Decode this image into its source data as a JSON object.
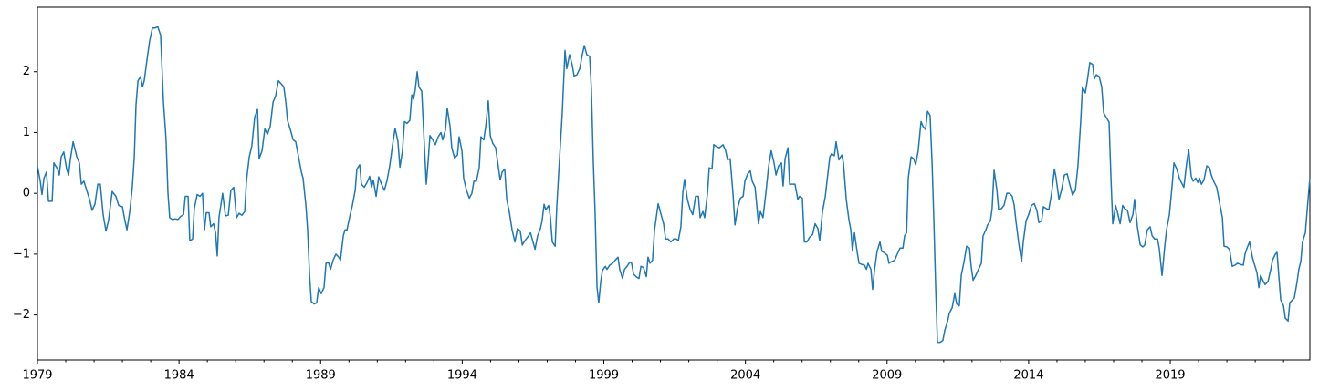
{
  "chart_data": {
    "type": "line",
    "x": [
      1979.0,
      1979.1,
      1979.16,
      1979.23,
      1979.32,
      1979.39,
      1979.52,
      1979.58,
      1979.71,
      1979.77,
      1979.84,
      1979.93,
      1980.03,
      1980.1,
      1980.16,
      1980.26,
      1980.39,
      1980.48,
      1980.55,
      1980.64,
      1980.74,
      1980.84,
      1980.93,
      1981.03,
      1981.13,
      1981.22,
      1981.32,
      1981.42,
      1981.51,
      1981.64,
      1981.77,
      1981.87,
      1982.0,
      1982.09,
      1982.16,
      1982.26,
      1982.35,
      1982.42,
      1982.48,
      1982.55,
      1982.64,
      1982.71,
      1982.77,
      1982.87,
      1982.96,
      1983.06,
      1983.16,
      1983.25,
      1983.35,
      1983.45,
      1983.54,
      1983.61,
      1983.67,
      1983.77,
      1983.87,
      1983.96,
      1984.06,
      1984.16,
      1984.22,
      1984.32,
      1984.38,
      1984.48,
      1984.54,
      1984.64,
      1984.74,
      1984.83,
      1984.9,
      1984.96,
      1985.06,
      1985.12,
      1985.22,
      1985.29,
      1985.35,
      1985.41,
      1985.54,
      1985.64,
      1985.74,
      1985.83,
      1985.93,
      1986.03,
      1986.12,
      1986.22,
      1986.32,
      1986.38,
      1986.48,
      1986.57,
      1986.67,
      1986.77,
      1986.83,
      1986.93,
      1987.03,
      1987.12,
      1987.22,
      1987.32,
      1987.41,
      1987.51,
      1987.61,
      1987.7,
      1987.77,
      1987.83,
      1987.93,
      1988.03,
      1988.12,
      1988.22,
      1988.32,
      1988.38,
      1988.48,
      1988.54,
      1988.61,
      1988.67,
      1988.77,
      1988.86,
      1988.93,
      1989.02,
      1989.12,
      1989.19,
      1989.28,
      1989.35,
      1989.44,
      1989.54,
      1989.64,
      1989.7,
      1989.8,
      1989.86,
      1989.93,
      1990.02,
      1990.12,
      1990.22,
      1990.28,
      1990.38,
      1990.44,
      1990.54,
      1990.64,
      1990.73,
      1990.8,
      1990.86,
      1990.96,
      1991.05,
      1991.15,
      1991.25,
      1991.34,
      1991.44,
      1991.54,
      1991.63,
      1991.73,
      1991.8,
      1991.89,
      1991.96,
      1992.05,
      1992.15,
      1992.22,
      1992.28,
      1992.34,
      1992.41,
      1992.47,
      1992.57,
      1992.63,
      1992.73,
      1992.8,
      1992.86,
      1992.96,
      1993.05,
      1993.15,
      1993.25,
      1993.31,
      1993.41,
      1993.47,
      1993.57,
      1993.63,
      1993.73,
      1993.83,
      1993.89,
      1993.99,
      1994.05,
      1994.15,
      1994.25,
      1994.34,
      1994.41,
      1994.5,
      1994.6,
      1994.66,
      1994.76,
      1994.83,
      1994.92,
      1994.99,
      1995.08,
      1995.18,
      1995.24,
      1995.34,
      1995.41,
      1995.5,
      1995.57,
      1995.66,
      1995.76,
      1995.86,
      1995.95,
      1996.05,
      1996.12,
      1996.21,
      1996.31,
      1996.41,
      1996.5,
      1996.57,
      1996.66,
      1996.76,
      1996.82,
      1996.89,
      1996.95,
      1997.05,
      1997.11,
      1997.18,
      1997.28,
      1997.34,
      1997.44,
      1997.53,
      1997.63,
      1997.69,
      1997.79,
      1997.89,
      1997.95,
      1998.05,
      1998.15,
      1998.24,
      1998.31,
      1998.4,
      1998.5,
      1998.56,
      1998.63,
      1998.69,
      1998.76,
      1998.82,
      1998.89,
      1998.95,
      1999.05,
      1999.11,
      1999.21,
      1999.31,
      1999.4,
      1999.5,
      1999.56,
      1999.66,
      1999.73,
      1999.82,
      1999.92,
      1999.98,
      2000.05,
      2000.14,
      2000.24,
      2000.31,
      2000.4,
      2000.5,
      2000.56,
      2000.63,
      2000.72,
      2000.79,
      2000.85,
      2000.92,
      2001.01,
      2001.11,
      2001.18,
      2001.27,
      2001.37,
      2001.47,
      2001.56,
      2001.63,
      2001.72,
      2001.79,
      2001.85,
      2001.95,
      2002.05,
      2002.14,
      2002.24,
      2002.34,
      2002.4,
      2002.5,
      2002.56,
      2002.66,
      2002.72,
      2002.82,
      2002.88,
      2002.98,
      2003.08,
      2003.21,
      2003.3,
      2003.37,
      2003.46,
      2003.56,
      2003.63,
      2003.72,
      2003.82,
      2003.92,
      2003.98,
      2004.08,
      2004.17,
      2004.24,
      2004.34,
      2004.4,
      2004.46,
      2004.53,
      2004.62,
      2004.72,
      2004.82,
      2004.91,
      2005.01,
      2005.08,
      2005.17,
      2005.27,
      2005.33,
      2005.4,
      2005.5,
      2005.56,
      2005.66,
      2005.75,
      2005.85,
      2005.91,
      2006.01,
      2006.08,
      2006.17,
      2006.27,
      2006.37,
      2006.46,
      2006.56,
      2006.62,
      2006.72,
      2006.82,
      2006.88,
      2006.98,
      2007.04,
      2007.14,
      2007.2,
      2007.3,
      2007.4,
      2007.46,
      2007.56,
      2007.65,
      2007.72,
      2007.78,
      2007.85,
      2007.94,
      2008.01,
      2008.11,
      2008.2,
      2008.27,
      2008.33,
      2008.43,
      2008.49,
      2008.56,
      2008.65,
      2008.75,
      2008.81,
      2008.91,
      2009.01,
      2009.07,
      2009.17,
      2009.27,
      2009.36,
      2009.46,
      2009.56,
      2009.62,
      2009.69,
      2009.75,
      2009.85,
      2009.94,
      2010.01,
      2010.1,
      2010.2,
      2010.27,
      2010.36,
      2010.43,
      2010.52,
      2010.59,
      2010.65,
      2010.72,
      2010.78,
      2010.88,
      2010.97,
      2011.04,
      2011.14,
      2011.2,
      2011.3,
      2011.39,
      2011.46,
      2011.55,
      2011.62,
      2011.72,
      2011.81,
      2011.91,
      2011.97,
      2012.04,
      2012.13,
      2012.23,
      2012.33,
      2012.39,
      2012.49,
      2012.55,
      2012.65,
      2012.71,
      2012.78,
      2012.88,
      2012.94,
      2013.04,
      2013.13,
      2013.23,
      2013.33,
      2013.42,
      2013.49,
      2013.55,
      2013.65,
      2013.75,
      2013.81,
      2013.91,
      2014.0,
      2014.1,
      2014.2,
      2014.29,
      2014.36,
      2014.46,
      2014.52,
      2014.62,
      2014.71,
      2014.81,
      2014.91,
      2014.97,
      2015.07,
      2015.16,
      2015.26,
      2015.36,
      2015.45,
      2015.55,
      2015.65,
      2015.74,
      2015.84,
      2015.9,
      2016.0,
      2016.07,
      2016.16,
      2016.26,
      2016.32,
      2016.39,
      2016.49,
      2016.58,
      2016.65,
      2016.74,
      2016.84,
      2016.91,
      2016.97,
      2017.07,
      2017.13,
      2017.23,
      2017.32,
      2017.39,
      2017.49,
      2017.58,
      2017.68,
      2017.74,
      2017.84,
      2017.94,
      2018.03,
      2018.1,
      2018.19,
      2018.29,
      2018.36,
      2018.45,
      2018.55,
      2018.61,
      2018.71,
      2018.81,
      2018.87,
      2018.97,
      2019.06,
      2019.13,
      2019.23,
      2019.32,
      2019.39,
      2019.48,
      2019.58,
      2019.65,
      2019.74,
      2019.81,
      2019.9,
      2019.97,
      2020.03,
      2020.1,
      2020.19,
      2020.29,
      2020.39,
      2020.45,
      2020.55,
      2020.64,
      2020.74,
      2020.84,
      2020.9,
      2021.0,
      2021.09,
      2021.19,
      2021.29,
      2021.38,
      2021.48,
      2021.58,
      2021.64,
      2021.71,
      2021.8,
      2021.9,
      2021.96,
      2022.06,
      2022.13,
      2022.19,
      2022.29,
      2022.35,
      2022.45,
      2022.55,
      2022.61,
      2022.71,
      2022.77,
      2022.84,
      2022.9,
      2023.0,
      2023.06,
      2023.16,
      2023.22,
      2023.32,
      2023.38,
      2023.48,
      2023.54,
      2023.61,
      2023.67,
      2023.77,
      2023.83,
      2023.93
    ],
    "series": [
      {
        "color": "#1f77b4",
        "values": [
          0.45,
          0.2,
          -0.02,
          0.25,
          0.35,
          -0.13,
          -0.13,
          0.5,
          0.4,
          0.3,
          0.6,
          0.68,
          0.4,
          0.3,
          0.55,
          0.85,
          0.6,
          0.5,
          0.15,
          0.2,
          0.05,
          -0.1,
          -0.28,
          -0.18,
          0.15,
          0.15,
          -0.35,
          -0.62,
          -0.45,
          0.03,
          -0.05,
          -0.2,
          -0.22,
          -0.45,
          -0.6,
          -0.3,
          0.1,
          0.6,
          1.45,
          1.85,
          1.92,
          1.75,
          1.85,
          2.2,
          2.5,
          2.72,
          2.72,
          2.74,
          2.6,
          1.5,
          0.9,
          0,
          -0.4,
          -0.43,
          -0.42,
          -0.43,
          -0.38,
          -0.35,
          -0.05,
          -0.05,
          -0.78,
          -0.75,
          -0.25,
          -0.02,
          -0.05,
          0,
          -0.6,
          -0.32,
          -0.32,
          -0.55,
          -0.5,
          -0.65,
          -1.03,
          -0.4,
          0,
          -0.37,
          -0.36,
          0.05,
          0.1,
          -0.4,
          -0.33,
          -0.36,
          -0.3,
          0.2,
          0.6,
          0.78,
          1.25,
          1.38,
          0.57,
          0.7,
          1.06,
          0.97,
          1.1,
          1.5,
          1.6,
          1.85,
          1.8,
          1.75,
          1.5,
          1.2,
          1.05,
          0.88,
          0.85,
          0.6,
          0.35,
          0.25,
          -0.2,
          -0.6,
          -1.35,
          -1.78,
          -1.82,
          -1.8,
          -1.55,
          -1.65,
          -1.55,
          -1.15,
          -1.14,
          -1.25,
          -1.1,
          -1.0,
          -1.05,
          -1.1,
          -0.7,
          -0.6,
          -0.6,
          -0.4,
          -0.2,
          0.05,
          0.4,
          0.47,
          0.15,
          0.1,
          0.18,
          0.28,
          0.1,
          0.22,
          -0.05,
          0.27,
          0.15,
          0.05,
          0.2,
          0.45,
          0.8,
          1.07,
          0.85,
          0.43,
          0.7,
          1.18,
          1.15,
          1.2,
          1.62,
          1.55,
          1.7,
          2.0,
          1.75,
          1.68,
          1.1,
          0.15,
          0.55,
          0.95,
          0.88,
          0.8,
          0.93,
          1.0,
          0.88,
          1.05,
          1.4,
          1.1,
          0.75,
          0.58,
          0.63,
          0.93,
          0.7,
          0.25,
          0.05,
          -0.08,
          0,
          0.2,
          0.2,
          0.42,
          0.93,
          0.88,
          1.1,
          1.52,
          0.95,
          0.82,
          0.75,
          0.55,
          0.22,
          0.35,
          0.4,
          -0.1,
          -0.3,
          -0.6,
          -0.8,
          -0.58,
          -0.62,
          -0.85,
          -0.78,
          -0.72,
          -0.65,
          -0.8,
          -0.92,
          -0.7,
          -0.58,
          -0.45,
          -0.18,
          -0.27,
          -0.2,
          -0.38,
          -0.8,
          -0.87,
          -0.2,
          0.6,
          1.3,
          2.35,
          2.05,
          2.28,
          2.1,
          1.93,
          1.95,
          2.05,
          2.28,
          2.43,
          2.28,
          2.25,
          1.72,
          0.5,
          -0.3,
          -1.55,
          -1.8,
          -1.45,
          -1.27,
          -1.2,
          -1.25,
          -1.18,
          -1.15,
          -1.1,
          -1.05,
          -1.25,
          -1.4,
          -1.25,
          -1.2,
          -1.13,
          -1.15,
          -1.33,
          -1.37,
          -1.4,
          -1.2,
          -1.22,
          -1.37,
          -1.05,
          -1.15,
          -1.1,
          -0.6,
          -0.4,
          -0.17,
          -0.33,
          -0.5,
          -0.75,
          -0.75,
          -0.8,
          -0.75,
          -0.75,
          -0.78,
          -0.55,
          0.02,
          0.23,
          -0.1,
          -0.27,
          -0.35,
          -0.05,
          -0.05,
          -0.4,
          -0.3,
          -0.4,
          0,
          0.42,
          0.4,
          0.8,
          0.77,
          0.75,
          0.8,
          0.7,
          0.55,
          0.57,
          0,
          -0.52,
          -0.25,
          -0.08,
          -0.05,
          0.2,
          0.32,
          0.37,
          0.2,
          0.1,
          -0.2,
          -0.5,
          -0.3,
          -0.4,
          0,
          0.45,
          0.7,
          0.5,
          0.3,
          0.45,
          0.5,
          0.12,
          0.57,
          0.75,
          0.15,
          0.15,
          0.15,
          -0.1,
          -0.05,
          -0.08,
          -0.8,
          -0.8,
          -0.72,
          -0.68,
          -0.5,
          -0.58,
          -0.78,
          -0.3,
          -0.05,
          0.2,
          0.6,
          0.65,
          0.62,
          0.85,
          0.55,
          0.63,
          0.5,
          -0.1,
          -0.42,
          -0.6,
          -0.95,
          -0.65,
          -0.95,
          -1.15,
          -1.17,
          -1.18,
          -1.25,
          -1.15,
          -1.25,
          -1.58,
          -1.25,
          -0.95,
          -0.8,
          -0.95,
          -0.98,
          -1.02,
          -1.15,
          -1.12,
          -1.1,
          -1.0,
          -0.9,
          -0.9,
          -0.7,
          -0.65,
          0.25,
          0.6,
          0.57,
          0.47,
          0.7,
          1.18,
          1.1,
          1.05,
          1.35,
          1.28,
          0.5,
          -0.4,
          -1.6,
          -2.45,
          -2.45,
          -2.42,
          -2.25,
          -2.1,
          -1.97,
          -1.88,
          -1.65,
          -1.82,
          -1.85,
          -1.35,
          -1.12,
          -0.87,
          -0.9,
          -1.2,
          -1.43,
          -1.35,
          -1.25,
          -1.15,
          -0.7,
          -0.6,
          -0.52,
          -0.45,
          -0.25,
          0.38,
          0.05,
          -0.27,
          -0.25,
          -0.2,
          0,
          0,
          -0.05,
          -0.2,
          -0.45,
          -0.82,
          -1.12,
          -0.8,
          -0.45,
          -0.35,
          -0.2,
          -0.17,
          -0.28,
          -0.48,
          -0.45,
          -0.22,
          -0.25,
          -0.27,
          0,
          0.4,
          0.25,
          -0.1,
          0.05,
          0.3,
          0.32,
          0.15,
          -0.03,
          0.05,
          0.45,
          1.2,
          1.75,
          1.65,
          1.85,
          2.15,
          2.12,
          1.88,
          1.95,
          1.92,
          1.75,
          1.32,
          1.25,
          1.17,
          0.2,
          -0.5,
          -0.2,
          -0.3,
          -0.5,
          -0.2,
          -0.25,
          -0.28,
          -0.48,
          -0.35,
          -0.1,
          -0.55,
          -0.85,
          -0.88,
          -0.85,
          -0.6,
          -0.55,
          -0.7,
          -0.75,
          -0.75,
          -0.9,
          -1.35,
          -0.85,
          -0.6,
          -0.35,
          0.1,
          0.5,
          0.4,
          0.25,
          0.18,
          0.1,
          0.5,
          0.72,
          0.28,
          0.2,
          0.25,
          0.18,
          0.25,
          0.15,
          0.22,
          0.45,
          0.42,
          0.3,
          0.18,
          0.1,
          -0.15,
          -0.4,
          -0.87,
          -0.88,
          -0.92,
          -1.2,
          -1.18,
          -1.15,
          -1.17,
          -1.18,
          -1.0,
          -0.9,
          -0.8,
          -1.05,
          -1.15,
          -1.3,
          -1.55,
          -1.35,
          -1.45,
          -1.5,
          -1.45,
          -1.25,
          -1.1,
          -1.0,
          -0.97,
          -1.4,
          -1.75,
          -1.85,
          -2.05,
          -2.1,
          -1.8,
          -1.75,
          -1.72,
          -1.45,
          -1.25,
          -1.12,
          -0.8,
          -0.65,
          -0.3,
          0.25
        ]
      }
    ],
    "xlim": [
      1979,
      2023.93
    ],
    "ylim": [
      -2.74,
      3.06
    ],
    "xticks": [
      1979,
      1984,
      1989,
      1994,
      1999,
      2004,
      2009,
      2014,
      2019
    ],
    "xminorticks": [
      1980,
      1981,
      1982,
      1983,
      1985,
      1986,
      1987,
      1988,
      1990,
      1991,
      1992,
      1993,
      1995,
      1996,
      1997,
      1998,
      2000,
      2001,
      2002,
      2003,
      2005,
      2006,
      2007,
      2008,
      2010,
      2011,
      2012,
      2013,
      2015,
      2016,
      2017,
      2018,
      2020,
      2021,
      2022,
      2023
    ],
    "yticks": [
      {
        "value": -2,
        "label": "−2"
      },
      {
        "value": -1,
        "label": "−1"
      },
      0,
      1,
      2
    ],
    "grid": false
  }
}
